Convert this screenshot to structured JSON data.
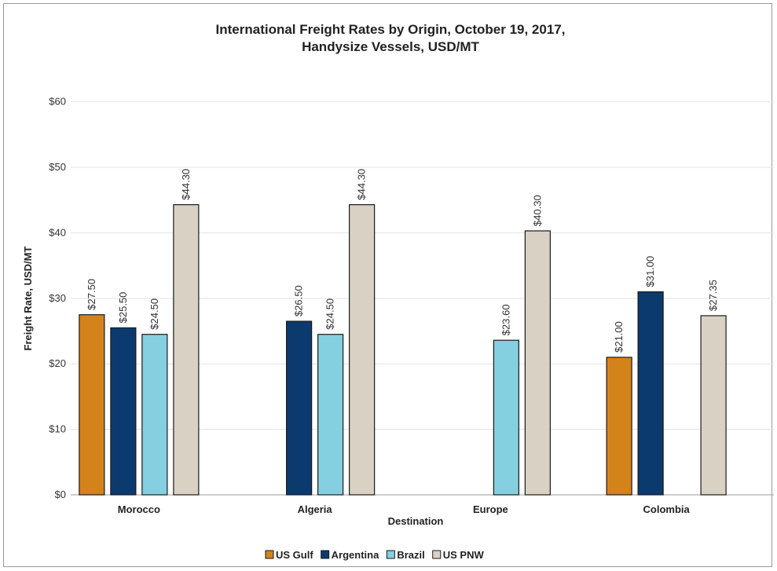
{
  "chart_data": {
    "type": "bar",
    "title": "International Freight Rates by Origin, October 19, 2017,",
    "subtitle": "Handysize Vessels, USD/MT",
    "xlabel": "Destination",
    "ylabel": "Freight Rate, USD/MT",
    "ylim": [
      0,
      65
    ],
    "yticks": [
      0,
      10,
      20,
      30,
      40,
      50,
      60
    ],
    "ytick_labels": [
      "$0",
      "$10",
      "$20",
      "$30",
      "$40",
      "$50",
      "$60"
    ],
    "grid": true,
    "legend_position": "bottom",
    "categories": [
      "Morocco",
      "Algeria",
      "Europe",
      "Colombia"
    ],
    "series": [
      {
        "name": "US Gulf",
        "color": "#d4831a",
        "values": [
          27.5,
          null,
          null,
          21.0
        ],
        "labels": [
          "$27.50",
          null,
          null,
          "$21.00"
        ]
      },
      {
        "name": "Argentina",
        "color": "#0b3a6e",
        "values": [
          25.5,
          26.5,
          null,
          31.0
        ],
        "labels": [
          "$25.50",
          "$26.50",
          null,
          "$31.00"
        ]
      },
      {
        "name": "Brazil",
        "color": "#84cfe0",
        "values": [
          24.5,
          24.5,
          23.6,
          null
        ],
        "labels": [
          "$24.50",
          "$24.50",
          "$23.60",
          null
        ]
      },
      {
        "name": "US PNW",
        "color": "#d9d1c4",
        "values": [
          44.3,
          44.3,
          40.3,
          27.35
        ],
        "labels": [
          "$44.30",
          "$44.30",
          "$40.30",
          "$27.35"
        ]
      }
    ]
  }
}
